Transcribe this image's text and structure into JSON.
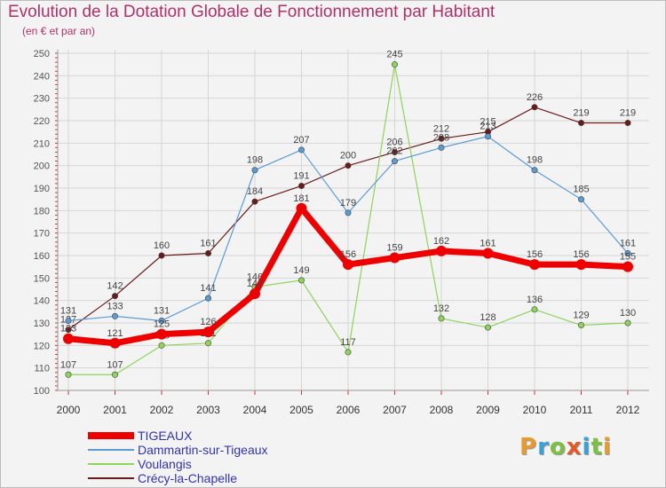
{
  "header": {
    "title": "Evolution de la Dotation Globale de Fonctionnement par Habitant",
    "subtitle": "(en € et par an)"
  },
  "logo": {
    "text": "Proxiti",
    "colors": [
      "#e89a2c",
      "#3aa1d8",
      "#7cc043",
      "#e05a2a",
      "#3aa1d8",
      "#7cc043",
      "#e89a2c"
    ]
  },
  "chart_data": {
    "type": "line",
    "x": [
      "2000",
      "2001",
      "2002",
      "2003",
      "2004",
      "2005",
      "2006",
      "2007",
      "2008",
      "2009",
      "2010",
      "2011",
      "2012"
    ],
    "ylim": [
      100,
      250
    ],
    "yticks": [
      100,
      110,
      120,
      130,
      140,
      150,
      160,
      170,
      180,
      190,
      200,
      210,
      220,
      230,
      240,
      250
    ],
    "grid": true,
    "legend_position": "bottom-left",
    "series": [
      {
        "name": "Crécy-la-Chapelle",
        "color": "#6b1a1a",
        "width": 1.2,
        "values": [
          127,
          142,
          160,
          161,
          184,
          191,
          200,
          206,
          212,
          215,
          226,
          219,
          219
        ],
        "labels": [
          "127",
          "142",
          "160",
          "161",
          "184",
          "191",
          "200",
          "206",
          "212",
          "215",
          "226",
          "219",
          "219"
        ]
      },
      {
        "name": "Voulangis",
        "color": "#8ed35a",
        "width": 1.2,
        "values": [
          107,
          107,
          120,
          121,
          146,
          149,
          117,
          245,
          132,
          128,
          136,
          129,
          130
        ],
        "labels": [
          "107",
          "107",
          "120",
          "121",
          "146",
          "149",
          "117",
          "245",
          "132",
          "128",
          "136",
          "129",
          "130"
        ]
      },
      {
        "name": "Dammartin-sur-Tigeaux",
        "color": "#5b9bd5",
        "width": 1.2,
        "values": [
          131,
          133,
          131,
          141,
          198,
          207,
          179,
          202,
          208,
          213,
          198,
          185,
          161
        ],
        "labels": [
          "131",
          "133",
          "131",
          "141",
          "198",
          "207",
          "179",
          "202",
          "208",
          "213",
          "198",
          "185",
          "161"
        ]
      },
      {
        "name": "TIGEAUX",
        "color": "#ee0000",
        "width": 7,
        "values": [
          123,
          121,
          125,
          126,
          143,
          181,
          156,
          159,
          162,
          161,
          156,
          156,
          155
        ],
        "labels": [
          "123",
          "121",
          "125",
          "126",
          "143",
          "181",
          "156",
          "159",
          "162",
          "161",
          "156",
          "156",
          "155"
        ]
      }
    ],
    "legend": [
      "TIGEAUX",
      "Dammartin-sur-Tigeaux",
      "Voulangis",
      "Crécy-la-Chapelle"
    ]
  }
}
